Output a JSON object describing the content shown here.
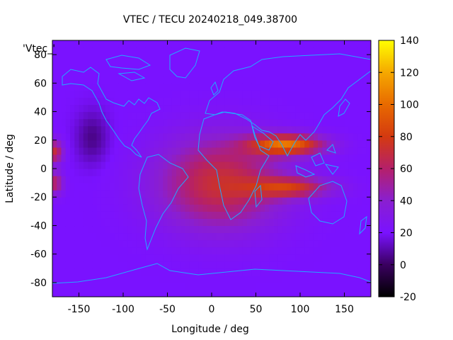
{
  "chart_data": {
    "type": "heatmap",
    "title": "VTEC / TECU 20240218_049.38700",
    "xlabel": "Longitude / deg",
    "ylabel": "Latitude / deg",
    "xlim": [
      -180,
      180
    ],
    "ylim": [
      -90,
      90
    ],
    "x_ticks": [
      -150,
      -100,
      -50,
      0,
      50,
      100,
      150
    ],
    "y_ticks": [
      -80,
      -60,
      -40,
      -20,
      0,
      20,
      40,
      60,
      80
    ],
    "colorbar": {
      "range": [
        -20,
        140
      ],
      "ticks": [
        -20,
        0,
        20,
        40,
        60,
        80,
        100,
        120,
        140
      ]
    },
    "legend_key": "'Vtec_'",
    "background_tecu": 20,
    "features": [
      {
        "name": "equatorial-anomaly-north-crest",
        "lon": 85,
        "lat": 17,
        "peak_tecu": 120
      },
      {
        "name": "equatorial-anomaly-south-crest",
        "lon": 90,
        "lat": -13,
        "peak_tecu": 92
      },
      {
        "name": "africa-atlantic-broad-region",
        "lon": 10,
        "lat": -10,
        "peak_tecu": 72
      },
      {
        "name": "dateline-north-patch",
        "lon": -178,
        "lat": 12,
        "peak_tecu": 70
      },
      {
        "name": "dateline-south-patch",
        "lon": -178,
        "lat": -10,
        "peak_tecu": 62
      },
      {
        "name": "pacific-depletion",
        "lon": -135,
        "lat": 22,
        "peak_tecu": 5
      }
    ],
    "grid": false
  },
  "palette": {
    "map_background": "#7a12ff",
    "coastline": "#22aaff"
  }
}
